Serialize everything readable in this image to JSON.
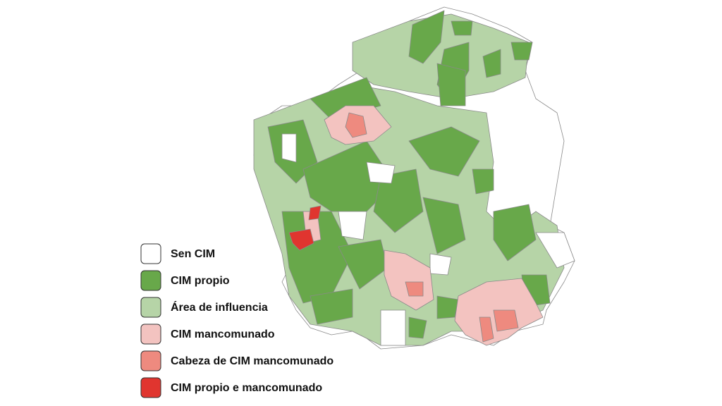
{
  "legend": {
    "items": [
      {
        "label": "Sen CIM",
        "color": "#ffffff"
      },
      {
        "label": "CIM propio",
        "color": "#68a84a"
      },
      {
        "label": "Área de influencia",
        "color": "#b6d4a7"
      },
      {
        "label": "CIM mancomunado",
        "color": "#f3c3c0"
      },
      {
        "label": "Cabeza de CIM mancomunado",
        "color": "#ee8a7f"
      },
      {
        "label": "CIM propio e mancomunado",
        "color": "#e0352f"
      }
    ]
  }
}
